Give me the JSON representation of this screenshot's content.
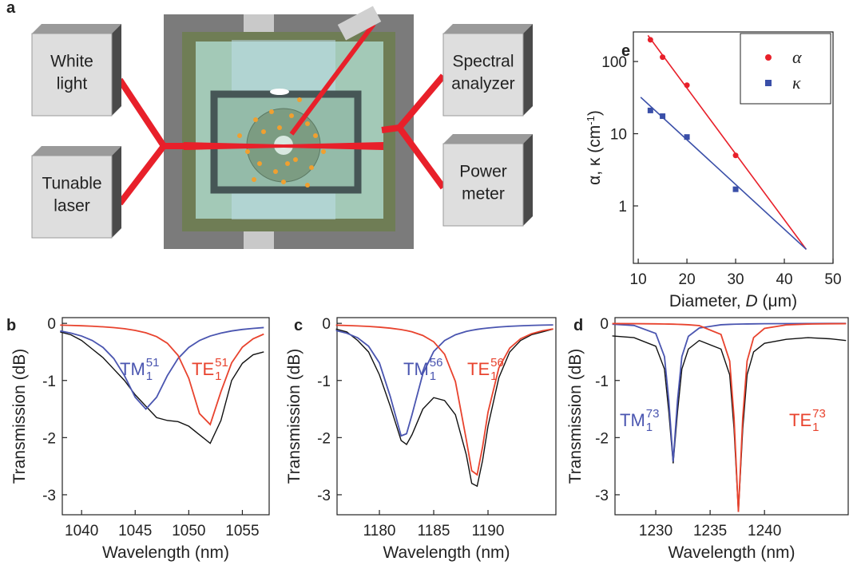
{
  "diagram": {
    "panel": "a",
    "boxes": [
      {
        "lines": [
          "White",
          "light"
        ]
      },
      {
        "lines": [
          "Tunable",
          "laser"
        ]
      },
      {
        "lines": [
          "Spectral",
          "analyzer"
        ]
      },
      {
        "lines": [
          "Power",
          "meter"
        ]
      }
    ]
  },
  "chart_data": [
    {
      "type": "line",
      "panel": "b",
      "xlabel": "Wavelength (nm)",
      "ylabel": "Transmission (dB)",
      "x": [
        1038,
        1039,
        1040,
        1041,
        1042,
        1043,
        1044,
        1045,
        1046,
        1047,
        1048,
        1049,
        1050,
        1051,
        1052,
        1053,
        1054,
        1055,
        1056,
        1057
      ],
      "xlim": [
        1038.2,
        1057.5
      ],
      "xticks": [
        1040,
        1045,
        1050,
        1055
      ],
      "ylim": [
        -3.35,
        0.1
      ],
      "yticks": [
        0,
        -1,
        -2,
        -3
      ],
      "series": [
        {
          "color": "#111111",
          "values": [
            -0.15,
            -0.2,
            -0.3,
            -0.45,
            -0.6,
            -0.8,
            -1.0,
            -1.25,
            -1.45,
            -1.65,
            -1.7,
            -1.72,
            -1.8,
            -1.95,
            -2.1,
            -1.7,
            -1.0,
            -0.7,
            -0.55,
            -0.5
          ]
        },
        {
          "color": "#4a55b0",
          "values": [
            -0.133,
            -0.17,
            -0.222,
            -0.3,
            -0.422,
            -0.615,
            -0.915,
            -1.293,
            -1.5,
            -1.293,
            -0.915,
            -0.615,
            -0.422,
            -0.3,
            -0.222,
            -0.17,
            -0.133,
            -0.107,
            -0.088,
            -0.074
          ]
        },
        {
          "color": "#e8432e",
          "values": [
            -0.031,
            -0.036,
            -0.042,
            -0.05,
            -0.061,
            -0.075,
            -0.094,
            -0.123,
            -0.165,
            -0.233,
            -0.348,
            -0.56,
            -0.962,
            -1.58,
            -1.77,
            -1.197,
            -0.691,
            -0.417,
            -0.271,
            -0.188
          ]
        }
      ],
      "annotations": [
        {
          "text": "TM",
          "sub": "1",
          "sup": "51",
          "color": "#4a55b0"
        },
        {
          "text": "TE",
          "sub": "1",
          "sup": "51",
          "color": "#e8432e"
        }
      ]
    },
    {
      "type": "line",
      "panel": "c",
      "xlabel": "Wavelength (nm)",
      "ylabel": "Transmission (dB)",
      "x": [
        1176,
        1177,
        1178,
        1179,
        1180,
        1181,
        1182,
        1182.5,
        1183,
        1184,
        1185,
        1186,
        1187,
        1188,
        1188.5,
        1189,
        1189.5,
        1190,
        1191,
        1192,
        1193,
        1194,
        1195,
        1196
      ],
      "xlim": [
        1176.1,
        1196.25
      ],
      "xticks": [
        1180,
        1185,
        1190
      ],
      "ylim": [
        -3.35,
        0.1
      ],
      "yticks": [
        0,
        -1,
        -2,
        -3
      ],
      "series": [
        {
          "color": "#111111",
          "values": [
            -0.1,
            -0.15,
            -0.3,
            -0.5,
            -0.9,
            -1.45,
            -2.05,
            -2.12,
            -1.95,
            -1.5,
            -1.3,
            -1.35,
            -1.6,
            -2.3,
            -2.8,
            -2.85,
            -2.4,
            -1.8,
            -0.95,
            -0.5,
            -0.3,
            -0.2,
            -0.15,
            -0.1
          ]
        },
        {
          "color": "#4a55b0",
          "values": [
            -0.125,
            -0.173,
            -0.253,
            -0.4,
            -0.692,
            -1.28,
            -1.969,
            -1.932,
            -1.6,
            -0.883,
            -0.492,
            -0.301,
            -0.2,
            -0.141,
            -0.121,
            -0.105,
            -0.092,
            -0.081,
            -0.064,
            -0.052,
            -0.043,
            -0.036,
            -0.031,
            -0.027
          ]
        },
        {
          "color": "#e8432e",
          "values": [
            -0.032,
            -0.0375,
            -0.045,
            -0.054,
            -0.067,
            -0.084,
            -0.11,
            -0.127,
            -0.148,
            -0.212,
            -0.323,
            -0.54,
            -1.02,
            -2.035,
            -2.58,
            -2.65,
            -2.16,
            -1.556,
            -0.778,
            -0.434,
            -0.27,
            -0.182,
            -0.131,
            -0.098
          ]
        }
      ],
      "annotations": [
        {
          "text": "TM",
          "sub": "1",
          "sup": "56",
          "color": "#4a55b0"
        },
        {
          "text": "TE",
          "sub": "1",
          "sup": "56",
          "color": "#e8432e"
        }
      ]
    },
    {
      "type": "line",
      "panel": "d",
      "xlabel": "Wavelength (nm)",
      "ylabel": "Transmission (dB)",
      "x": [
        1226,
        1228,
        1230,
        1230.8,
        1231.2,
        1231.6,
        1232,
        1232.4,
        1233,
        1234,
        1236,
        1236.8,
        1237.2,
        1237.6,
        1238,
        1238.4,
        1239,
        1240,
        1242,
        1244,
        1246,
        1247.5
      ],
      "xlim": [
        1226.25,
        1247.7
      ],
      "xticks": [
        1230,
        1235,
        1240
      ],
      "ylim": [
        -3.35,
        0.1
      ],
      "yticks": [
        0,
        -1,
        -2,
        -3
      ],
      "series": [
        {
          "color": "#111111",
          "values": [
            -0.22,
            -0.25,
            -0.4,
            -0.8,
            -1.55,
            -2.45,
            -1.55,
            -0.8,
            -0.45,
            -0.3,
            -0.45,
            -0.9,
            -1.85,
            -3.3,
            -1.85,
            -0.9,
            -0.5,
            -0.35,
            -0.28,
            -0.25,
            -0.27,
            -0.3
          ]
        },
        {
          "color": "#4a55b0",
          "values": [
            -0.0155,
            -0.037,
            -0.177,
            -0.582,
            -1.352,
            -2.42,
            -1.352,
            -0.582,
            -0.227,
            -0.082,
            -0.025,
            -0.018,
            -0.0155,
            -0.0135,
            -0.012,
            -0.0106,
            -0.0089,
            -0.0069,
            -0.0045,
            -0.0032,
            -0.0024,
            -0.0019
          ]
        },
        {
          "color": "#e8432e",
          "values": [
            -0.0039,
            -0.0057,
            -0.0091,
            -0.0114,
            -0.0128,
            -0.0146,
            -0.0168,
            -0.0194,
            -0.0248,
            -0.04,
            -0.194,
            -0.66,
            -1.65,
            -3.3,
            -1.65,
            -0.66,
            -0.249,
            -0.089,
            -0.027,
            -0.0128,
            -0.0075,
            -0.0054
          ]
        }
      ],
      "annotations": [
        {
          "text": "TM",
          "sub": "1",
          "sup": "73",
          "color": "#4a55b0"
        },
        {
          "text": "TE",
          "sub": "1",
          "sup": "73",
          "color": "#e8432e"
        }
      ]
    },
    {
      "type": "scatter",
      "panel": "e",
      "xlabel": {
        "text": "Diameter, ",
        "italic": "D",
        "tail": " (μm)"
      },
      "ylabel": {
        "text": "α, κ (cm",
        "sup": "-1",
        "tail": ")"
      },
      "xlim": [
        9,
        50
      ],
      "xticks": [
        10,
        20,
        30,
        40,
        50
      ],
      "ylim": [
        0.16,
        257
      ],
      "ylog": true,
      "yticks": [
        1,
        10,
        100
      ],
      "legend": "upper right",
      "series": [
        {
          "name": "α",
          "color": "#e8202a",
          "marker": "circle",
          "x": [
            12.5,
            15,
            20,
            30
          ],
          "values": [
            200,
            115,
            47,
            5
          ]
        },
        {
          "name": "κ",
          "color": "#3a4fa8",
          "marker": "square",
          "x": [
            12.5,
            15,
            20,
            30
          ],
          "values": [
            21,
            17.5,
            9,
            1.7
          ]
        },
        {
          "color": "#e8202a",
          "marker": "none",
          "x": [
            12,
            44.5
          ],
          "values": [
            230,
            0.25
          ]
        },
        {
          "color": "#3a4fa8",
          "marker": "none",
          "x": [
            10.5,
            44.5
          ],
          "values": [
            32,
            0.25
          ]
        }
      ]
    }
  ]
}
